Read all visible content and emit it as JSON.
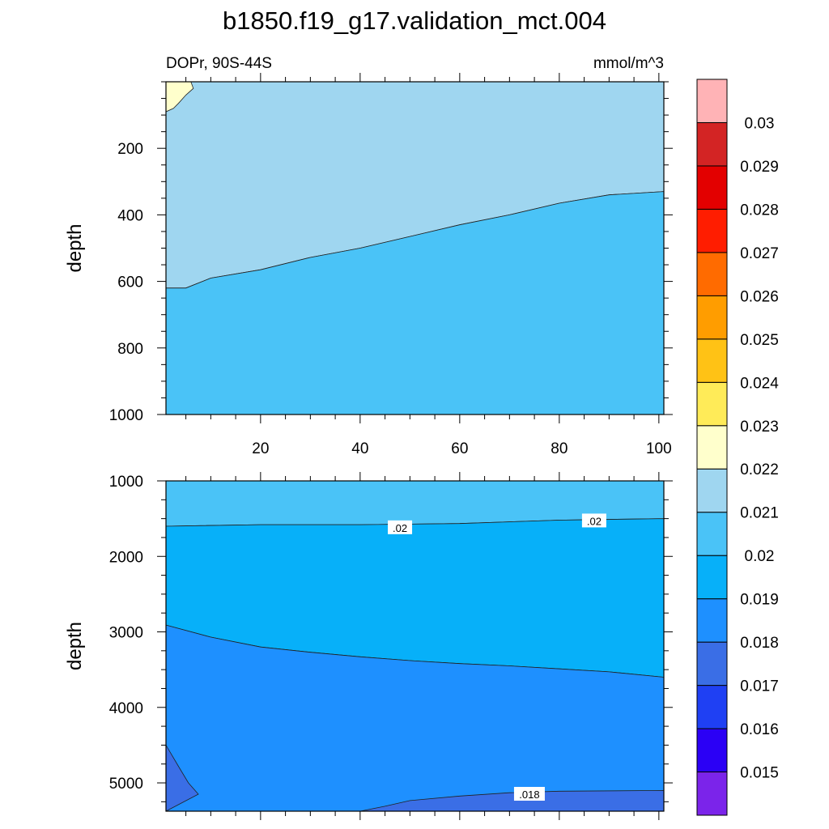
{
  "figure": {
    "title": "b1850.f19_g17.validation_mct.004",
    "panel_left_label": "DOPr, 90S-44S",
    "panel_right_label": "mmol/m^3"
  },
  "chart_data": [
    {
      "type": "heatmap",
      "subtype": "filled-contour",
      "panel": "upper",
      "ylabel": "depth",
      "xlim": [
        1,
        101
      ],
      "ylim": [
        0,
        1000
      ],
      "y_inverted": true,
      "xticks": [
        20,
        40,
        60,
        80,
        100
      ],
      "yticks": [
        200,
        400,
        600,
        800,
        1000
      ],
      "fill_levels": [
        {
          "level_index": 11,
          "color": "#9fd6f0",
          "polygon": [
            [
              1,
              0
            ],
            [
              101,
              0
            ],
            [
              101,
              330
            ],
            [
              90,
              340
            ],
            [
              80,
              365
            ],
            [
              70,
              400
            ],
            [
              60,
              430
            ],
            [
              50,
              465
            ],
            [
              40,
              500
            ],
            [
              30,
              528
            ],
            [
              20,
              565
            ],
            [
              10,
              590
            ],
            [
              5,
              620
            ],
            [
              1,
              620
            ]
          ]
        },
        {
          "level_index": 10,
          "color": "#4ac3f7",
          "polygon": [
            [
              1,
              620
            ],
            [
              5,
              620
            ],
            [
              10,
              590
            ],
            [
              20,
              565
            ],
            [
              30,
              528
            ],
            [
              40,
              500
            ],
            [
              50,
              465
            ],
            [
              60,
              430
            ],
            [
              70,
              400
            ],
            [
              80,
              365
            ],
            [
              90,
              340
            ],
            [
              101,
              330
            ],
            [
              101,
              1000
            ],
            [
              1,
              1000
            ]
          ]
        },
        {
          "level_index": 12,
          "color": "#ffffcc",
          "polygon": [
            [
              1,
              0
            ],
            [
              6,
              0
            ],
            [
              6.5,
              20
            ],
            [
              5,
              40
            ],
            [
              3.5,
              65
            ],
            [
              2.5,
              80
            ],
            [
              1,
              90
            ]
          ]
        }
      ],
      "contour_labels": []
    },
    {
      "type": "heatmap",
      "subtype": "filled-contour",
      "panel": "lower",
      "ylabel": "depth",
      "xlim": [
        1,
        101
      ],
      "ylim": [
        1000,
        5375
      ],
      "y_inverted": true,
      "xticks": [
        20,
        40,
        60,
        80,
        100
      ],
      "yticks": [
        1000,
        2000,
        3000,
        4000,
        5000
      ],
      "fill_levels": [
        {
          "level_index": 10,
          "color": "#4ac3f7",
          "polygon": [
            [
              1,
              1000
            ],
            [
              101,
              1000
            ],
            [
              101,
              1500
            ],
            [
              80,
              1520
            ],
            [
              60,
              1565
            ],
            [
              40,
              1580
            ],
            [
              20,
              1580
            ],
            [
              1,
              1600
            ]
          ]
        },
        {
          "level_index": 9,
          "color": "#07b0f9",
          "polygon": [
            [
              1,
              1600
            ],
            [
              20,
              1580
            ],
            [
              40,
              1580
            ],
            [
              60,
              1565
            ],
            [
              80,
              1520
            ],
            [
              101,
              1500
            ],
            [
              101,
              3600
            ],
            [
              90,
              3530
            ],
            [
              80,
              3490
            ],
            [
              70,
              3450
            ],
            [
              60,
              3420
            ],
            [
              50,
              3380
            ],
            [
              40,
              3330
            ],
            [
              30,
              3270
            ],
            [
              20,
              3200
            ],
            [
              10,
              3070
            ],
            [
              1,
              2910
            ]
          ]
        },
        {
          "level_index": 8,
          "color": "#1e90ff",
          "polygon": [
            [
              1,
              2910
            ],
            [
              10,
              3070
            ],
            [
              20,
              3200
            ],
            [
              30,
              3270
            ],
            [
              40,
              3330
            ],
            [
              50,
              3380
            ],
            [
              60,
              3420
            ],
            [
              70,
              3450
            ],
            [
              80,
              3490
            ],
            [
              90,
              3530
            ],
            [
              101,
              3600
            ],
            [
              101,
              5375
            ],
            [
              1,
              5375
            ]
          ]
        },
        {
          "level_index": 7,
          "color": "#3a6ee6",
          "polygon": [
            [
              1,
              4500
            ],
            [
              3.5,
              4780
            ],
            [
              5.5,
              5000
            ],
            [
              7.5,
              5150
            ],
            [
              1,
              5375
            ]
          ]
        },
        {
          "level_index": 7,
          "color": "#3a6ee6",
          "polygon": [
            [
              40,
              5375
            ],
            [
              45,
              5310
            ],
            [
              50,
              5235
            ],
            [
              60,
              5175
            ],
            [
              70,
              5130
            ],
            [
              80,
              5110
            ],
            [
              101,
              5100
            ],
            [
              101,
              5375
            ]
          ]
        }
      ],
      "contour_labels": [
        {
          "text": ".02",
          "x": 48,
          "y": 1620
        },
        {
          "text": ".02",
          "x": 87,
          "y": 1530
        },
        {
          "text": ".018",
          "x": 74,
          "y": 5150
        }
      ]
    }
  ],
  "colorbar": {
    "colors": [
      "#7b24ea",
      "#2b00f5",
      "#1f40f3",
      "#3a6ee6",
      "#1e90ff",
      "#07b0f9",
      "#4ac3f7",
      "#9fd6f0",
      "#ffffcc",
      "#ffeb58",
      "#ffc215",
      "#ff9d00",
      "#ff6b00",
      "#ff1d00",
      "#e30000",
      "#d32424",
      "#ffb3b6"
    ],
    "labels": [
      "0.015",
      "0.016",
      "0.017",
      "0.018",
      "0.019",
      "0.02",
      "0.021",
      "0.022",
      "0.023",
      "0.024",
      "0.025",
      "0.026",
      "0.027",
      "0.028",
      "0.029",
      "0.03"
    ]
  }
}
